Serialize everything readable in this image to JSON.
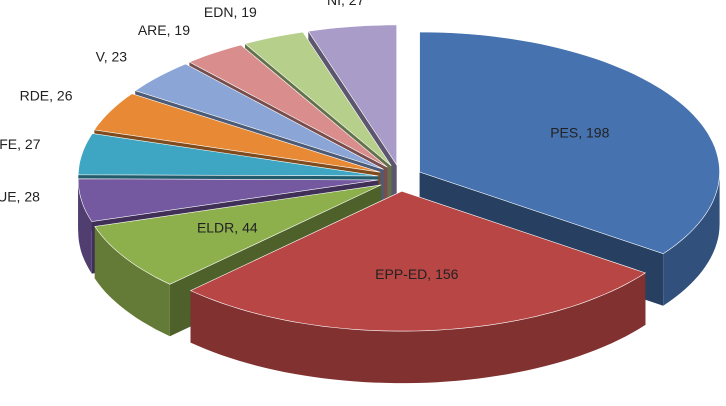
{
  "chart_data": {
    "type": "pie",
    "categories": [
      "PES",
      "EPP-ED",
      "ELDR",
      "GUE",
      "FE",
      "RDE",
      "V",
      "ARE",
      "EDN",
      "NI"
    ],
    "values": [
      198,
      156,
      44,
      28,
      27,
      26,
      23,
      19,
      19,
      27
    ],
    "colors": [
      "#4672b0",
      "#b84644",
      "#8db04d",
      "#7458a0",
      "#3ea6c2",
      "#e88a35",
      "#8aa5d6",
      "#d98d8c",
      "#b6cf8a",
      "#a99cc9"
    ],
    "exploded": true,
    "three_d": true
  }
}
